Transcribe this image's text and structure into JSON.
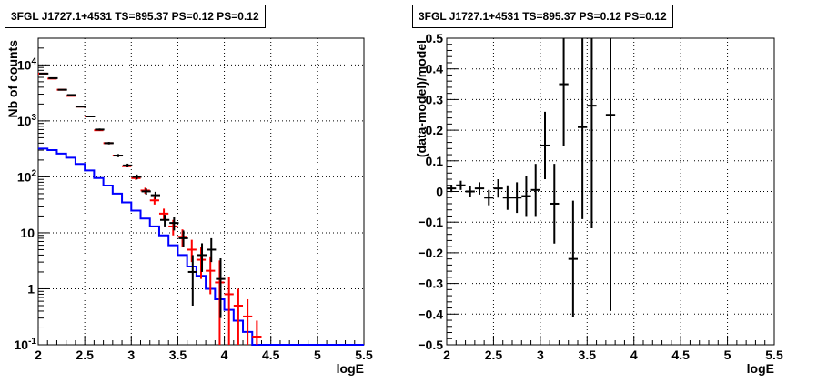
{
  "chart_data": [
    {
      "type": "line",
      "title": "3FGL J1727.1+4531 TS=895.37 PS=0.12 PS=0.12",
      "xlabel": "logE",
      "ylabel": "Nb of counts",
      "xlim": [
        2,
        5.5
      ],
      "ylim": [
        0.1,
        30000
      ],
      "yscale": "log",
      "grid": true,
      "x_ticks": [
        "2",
        "2.5",
        "3",
        "3.5",
        "4",
        "4.5",
        "5",
        "5.5"
      ],
      "y_ticks": [
        {
          "base": "10",
          "exp": "-1"
        },
        {
          "base": "1",
          "exp": ""
        },
        {
          "base": "10",
          "exp": ""
        },
        {
          "base": "10",
          "exp": "2"
        },
        {
          "base": "10",
          "exp": "3"
        },
        {
          "base": "10",
          "exp": "4"
        }
      ],
      "colors": {
        "data": "#000000",
        "model_total": "#ff0000",
        "model_source": "#0000ff"
      },
      "series": [
        {
          "role": "data",
          "x": [
            2.05,
            2.15,
            2.25,
            2.35,
            2.45,
            2.55,
            2.65,
            2.75,
            2.85,
            2.95,
            3.05,
            3.15,
            3.25,
            3.35,
            3.45,
            3.55,
            3.65,
            3.75,
            3.85,
            3.95
          ],
          "y": [
            7000,
            5800,
            3600,
            2900,
            1800,
            1200,
            700,
            400,
            240,
            160,
            100,
            55,
            47,
            17,
            15,
            8,
            2,
            4,
            5,
            1.5
          ],
          "ylow": [
            6900,
            5700,
            3550,
            2850,
            1760,
            1160,
            670,
            380,
            225,
            148,
            90,
            48,
            40,
            13,
            11,
            5.5,
            0.5,
            2,
            3,
            0.3
          ],
          "yhigh": [
            7100,
            5900,
            3650,
            2950,
            1840,
            1240,
            730,
            420,
            255,
            172,
            110,
            62,
            54,
            21,
            19,
            11,
            4,
            6.5,
            8,
            3.5
          ]
        },
        {
          "role": "model_total",
          "x": [
            2.05,
            2.15,
            2.25,
            2.35,
            2.45,
            2.55,
            2.65,
            2.75,
            2.85,
            2.95,
            3.05,
            3.15,
            3.25,
            3.35,
            3.45,
            3.55,
            3.65,
            3.75,
            3.85,
            3.95,
            4.05,
            4.15,
            4.25,
            4.35
          ],
          "y": [
            7000,
            5700,
            3600,
            2800,
            1800,
            1200,
            680,
            400,
            240,
            155,
            95,
            57,
            38,
            22,
            13,
            8.5,
            5,
            3.3,
            2.1,
            1.3,
            0.8,
            0.5,
            0.32,
            0.14
          ],
          "ylow": [
            6920,
            5640,
            3560,
            2770,
            1780,
            1180,
            665,
            390,
            232,
            148,
            88,
            50,
            32,
            17,
            9,
            5.5,
            3,
            1.5,
            0.8,
            0.1,
            0.1,
            0.1,
            0.1,
            0.1
          ],
          "yhigh": [
            7080,
            5760,
            3640,
            2830,
            1820,
            1220,
            695,
            410,
            248,
            162,
            102,
            64,
            45,
            27,
            17,
            11.5,
            7.5,
            5.5,
            3.8,
            3.2,
            1.6,
            1.0,
            0.65,
            0.27
          ]
        },
        {
          "role": "model_source",
          "x": [
            2.05,
            2.15,
            2.25,
            2.35,
            2.45,
            2.55,
            2.65,
            2.75,
            2.85,
            2.95,
            3.05,
            3.15,
            3.25,
            3.35,
            3.45,
            3.55,
            3.65,
            3.75,
            3.85,
            3.95,
            4.05,
            4.15,
            4.25,
            4.35,
            4.45,
            4.55,
            4.65,
            4.75,
            4.85,
            4.95,
            5.05,
            5.15,
            5.25,
            5.35,
            5.45
          ],
          "y": [
            320,
            300,
            260,
            220,
            170,
            130,
            95,
            70,
            50,
            35,
            25,
            18,
            13,
            9,
            6,
            4,
            2.5,
            1.7,
            1.0,
            0.65,
            0.42,
            0.27,
            0.17,
            0.1,
            0.1,
            0.1,
            0.1,
            0.1,
            0.1,
            0.1,
            0.1,
            0.1,
            0.1,
            0.1,
            0.1
          ]
        }
      ]
    },
    {
      "type": "scatter",
      "title": "3FGL J1727.1+4531 TS=895.37 PS=0.12 PS=0.12",
      "xlabel": "logE",
      "ylabel": "(data-model)/model",
      "xlim": [
        2,
        5.5
      ],
      "ylim": [
        -0.5,
        0.5
      ],
      "yscale": "linear",
      "grid": true,
      "x_ticks": [
        "2",
        "2.5",
        "3",
        "3.5",
        "4",
        "4.5",
        "5",
        "5.5"
      ],
      "y_ticks": [
        "−0.5",
        "−0.4",
        "−0.3",
        "−0.2",
        "−0.1",
        "0",
        "0.1",
        "0.2",
        "0.3",
        "0.4",
        "0.5"
      ],
      "colors": {
        "points": "#000000"
      },
      "series": [
        {
          "role": "residuals",
          "x": [
            2.05,
            2.15,
            2.25,
            2.35,
            2.45,
            2.55,
            2.65,
            2.75,
            2.85,
            2.95,
            3.05,
            3.15,
            3.25,
            3.35,
            3.45,
            3.55,
            3.75
          ],
          "y": [
            0.01,
            0.02,
            0.0,
            0.01,
            -0.02,
            0.01,
            -0.02,
            -0.02,
            -0.015,
            0.005,
            0.15,
            -0.04,
            0.35,
            -0.22,
            0.21,
            0.28,
            0.25
          ],
          "yerr": [
            0.012,
            0.015,
            0.018,
            0.02,
            0.025,
            0.03,
            0.04,
            0.05,
            0.065,
            0.085,
            0.11,
            0.13,
            0.2,
            0.19,
            0.3,
            0.4,
            0.64
          ]
        }
      ]
    }
  ]
}
